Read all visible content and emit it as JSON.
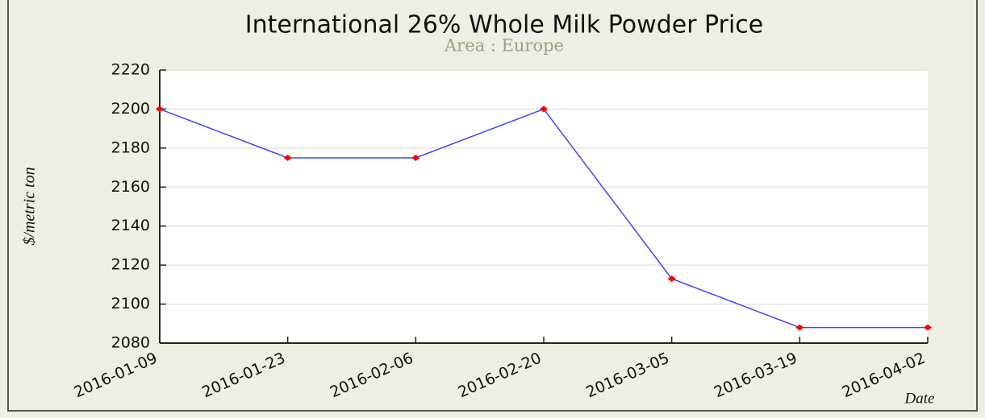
{
  "chart_data": {
    "type": "line",
    "title": "International 26% Whole Milk Powder Price",
    "subtitle": "Area : Europe",
    "y_label": "$/metric ton",
    "x_label": "Date",
    "categories": [
      "2016-01-09",
      "2016-01-23",
      "2016-02-06",
      "2016-02-20",
      "2016-03-05",
      "2016-03-19",
      "2016-04-02"
    ],
    "series": [
      {
        "name": "Europe",
        "color": "#4444ff",
        "marker_color": "#ff0000",
        "values": [
          2200,
          2175,
          2175,
          2200,
          2113,
          2088,
          2088
        ]
      }
    ],
    "ylim": [
      2080,
      2220
    ],
    "yticks": [
      2080,
      2100,
      2120,
      2140,
      2160,
      2180,
      2200,
      2220
    ],
    "grid": true
  }
}
